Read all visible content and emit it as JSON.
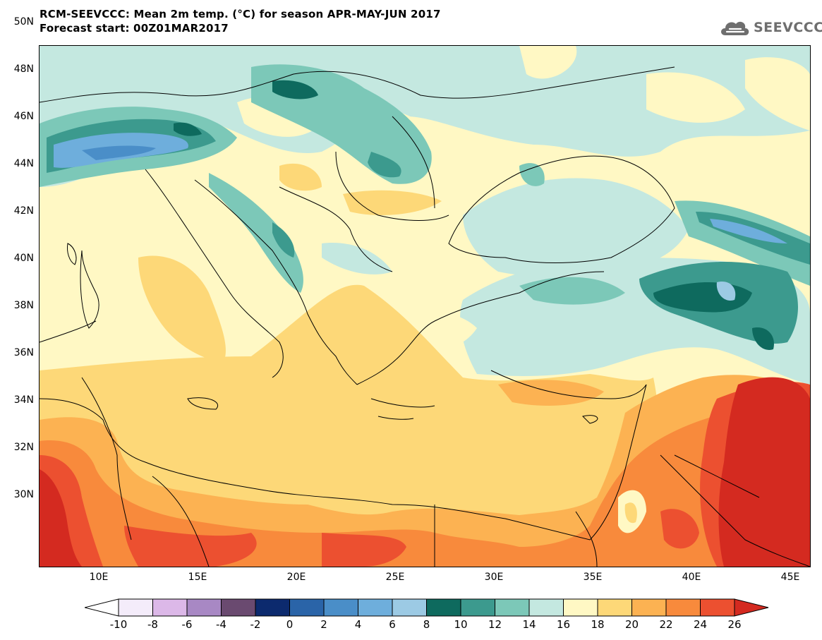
{
  "header": {
    "title_line1": "RCM-SEEVCCC: Mean 2m temp. (°C) for season APR-MAY-JUN 2017",
    "title_line2": "Forecast start: 00Z01MAR2017",
    "logo_text": "SEEVCCC"
  },
  "map": {
    "y_ticks": [
      "50N",
      "48N",
      "46N",
      "44N",
      "42N",
      "40N",
      "38N",
      "36N",
      "34N",
      "32N",
      "30N"
    ],
    "x_ticks": [
      "10E",
      "15E",
      "20E",
      "25E",
      "30E",
      "35E",
      "40E",
      "45E"
    ]
  },
  "colorbar": {
    "labels": [
      "-10",
      "-8",
      "-6",
      "-4",
      "-2",
      "0",
      "2",
      "4",
      "6",
      "8",
      "10",
      "12",
      "14",
      "16",
      "18",
      "20",
      "22",
      "24",
      "26"
    ],
    "colors": [
      "#f4ecfa",
      "#dcb8e8",
      "#a888c4",
      "#6a4a70",
      "#0c2a6e",
      "#2a64a8",
      "#4a8ec8",
      "#6eaedc",
      "#9ccae4",
      "#0e6a5e",
      "#3c9a8e",
      "#7cc8b8",
      "#c4e8e0",
      "#fff8c4",
      "#fdd878",
      "#fcb252",
      "#f88a3c",
      "#ec5030"
    ],
    "under_color": "#ffffff",
    "over_color": "#d42a20"
  }
}
